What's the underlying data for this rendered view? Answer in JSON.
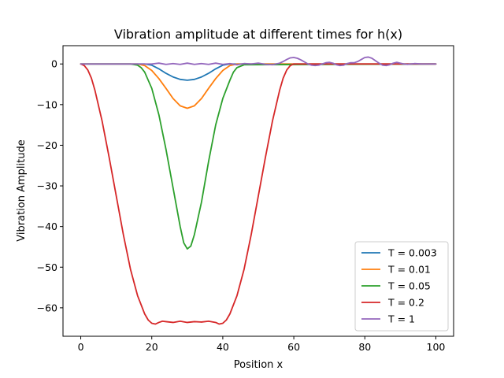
{
  "chart_data": {
    "type": "line",
    "title": "Vibration amplitude at different times for h(x)",
    "xlabel": "Position x",
    "ylabel": "Vibration Amplitude",
    "xlim": [
      -5,
      105
    ],
    "ylim": [
      -67,
      4.5
    ],
    "xticks": [
      0,
      20,
      40,
      60,
      80,
      100
    ],
    "yticks": [
      0,
      -10,
      -20,
      -30,
      -40,
      -50,
      -60
    ],
    "legend_position": "lower-right",
    "grid": false,
    "series": [
      {
        "name": "T = 0.003",
        "color": "#1f77b4",
        "x": [
          0,
          18,
          20,
          22,
          24,
          26,
          28,
          30,
          32,
          34,
          36,
          38,
          40,
          42,
          100
        ],
        "y": [
          0,
          0,
          -0.3,
          -1.2,
          -2.3,
          -3.2,
          -3.8,
          -4.0,
          -3.8,
          -3.2,
          -2.3,
          -1.2,
          -0.3,
          0,
          0
        ]
      },
      {
        "name": "T = 0.01",
        "color": "#ff7f0e",
        "x": [
          0,
          16,
          18,
          20,
          22,
          24,
          26,
          28,
          30,
          32,
          34,
          36,
          38,
          40,
          42,
          44,
          100
        ],
        "y": [
          0,
          0,
          -0.4,
          -1.6,
          -3.6,
          -6.0,
          -8.5,
          -10.3,
          -10.9,
          -10.3,
          -8.5,
          -6.0,
          -3.6,
          -1.6,
          -0.4,
          0,
          0
        ]
      },
      {
        "name": "T = 0.05",
        "color": "#2ca02c",
        "x": [
          0,
          14,
          16,
          17,
          18,
          20,
          22,
          24,
          26,
          28,
          29,
          30,
          31,
          32,
          34,
          36,
          38,
          40,
          42,
          43,
          44,
          46,
          100
        ],
        "y": [
          0,
          0,
          -0.3,
          -0.9,
          -2.0,
          -6.0,
          -12.5,
          -21.0,
          -30.5,
          -40.0,
          -44.0,
          -45.5,
          -44.8,
          -42.0,
          -34.0,
          -24.0,
          -15.0,
          -8.5,
          -4.0,
          -2.0,
          -0.9,
          -0.2,
          0
        ]
      },
      {
        "name": "T = 0.2",
        "color": "#d62728",
        "x": [
          0,
          1,
          2,
          3,
          4,
          6,
          8,
          10,
          12,
          14,
          16,
          18,
          19,
          20,
          21,
          22,
          23,
          24,
          26,
          28,
          30,
          32,
          34,
          36,
          38,
          39,
          40,
          41,
          42,
          44,
          46,
          48,
          50,
          52,
          54,
          56,
          57,
          58,
          59,
          60,
          100
        ],
        "y": [
          0,
          -0.4,
          -1.5,
          -3.5,
          -6.5,
          -14.0,
          -23.0,
          -32.5,
          -42.0,
          -50.5,
          -57.0,
          -61.5,
          -63.0,
          -63.8,
          -64.0,
          -63.6,
          -63.3,
          -63.4,
          -63.6,
          -63.3,
          -63.6,
          -63.4,
          -63.5,
          -63.3,
          -63.6,
          -64.0,
          -63.8,
          -63.0,
          -61.5,
          -57.0,
          -50.5,
          -42.0,
          -32.5,
          -23.0,
          -14.0,
          -6.5,
          -3.5,
          -1.5,
          -0.4,
          0,
          0
        ]
      },
      {
        "name": "T = 1",
        "color": "#9467bd",
        "x": [
          0,
          20,
          22,
          24,
          26,
          28,
          30,
          32,
          34,
          36,
          38,
          40,
          42,
          44,
          46,
          48,
          50,
          52,
          54,
          56,
          57,
          58,
          59,
          60,
          61,
          62,
          63,
          64,
          65,
          66,
          67,
          68,
          69,
          70,
          71,
          72,
          73,
          74,
          75,
          76,
          77,
          78,
          79,
          80,
          81,
          82,
          83,
          84,
          85,
          86,
          87,
          88,
          89,
          90,
          91,
          92,
          94,
          96,
          98,
          100
        ],
        "y": [
          0,
          0,
          0.2,
          -0.1,
          0.1,
          -0.1,
          0.2,
          -0.1,
          0.1,
          -0.1,
          0.2,
          -0.1,
          0.1,
          -0.2,
          0.1,
          0.0,
          0.2,
          -0.1,
          -0.2,
          0.2,
          0.6,
          1.1,
          1.5,
          1.6,
          1.4,
          1.0,
          0.5,
          0.0,
          -0.3,
          -0.4,
          -0.3,
          0.0,
          0.3,
          0.4,
          0.2,
          -0.2,
          -0.4,
          -0.3,
          0.1,
          0.3,
          0.3,
          0.6,
          1.1,
          1.6,
          1.7,
          1.4,
          0.8,
          0.2,
          -0.3,
          -0.4,
          -0.2,
          0.2,
          0.4,
          0.2,
          0.0,
          -0.1,
          0.1,
          0.0,
          0.0,
          0.0
        ]
      }
    ]
  }
}
